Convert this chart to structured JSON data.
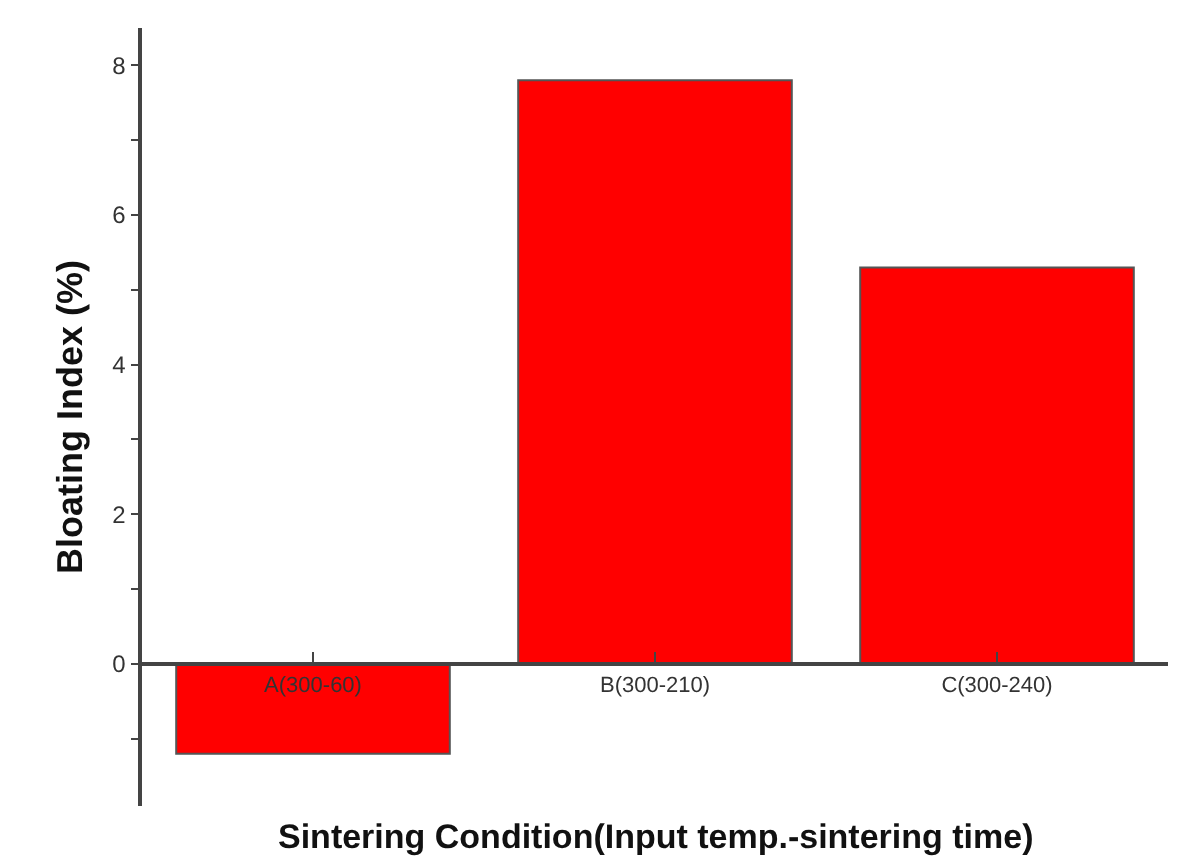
{
  "chart_data": {
    "type": "bar",
    "xlabel": "Sintering Condition(Input temp.-sintering time)",
    "ylabel": "Bloating Index (%)",
    "categories": [
      "A(300-60)",
      "B(300-210)",
      "C(300-240)"
    ],
    "values": [
      -1.2,
      7.8,
      5.3
    ],
    "color": "#ff0000",
    "ylim": [
      -1.9,
      8.5
    ],
    "yticks": [
      {
        "value": -1,
        "label": null
      },
      0,
      {
        "value": 1,
        "label": null
      },
      2,
      {
        "value": 3,
        "label": null
      },
      4,
      {
        "value": 5,
        "label": null
      },
      6,
      {
        "value": 7,
        "label": null
      },
      8
    ],
    "line_style": "solid"
  }
}
